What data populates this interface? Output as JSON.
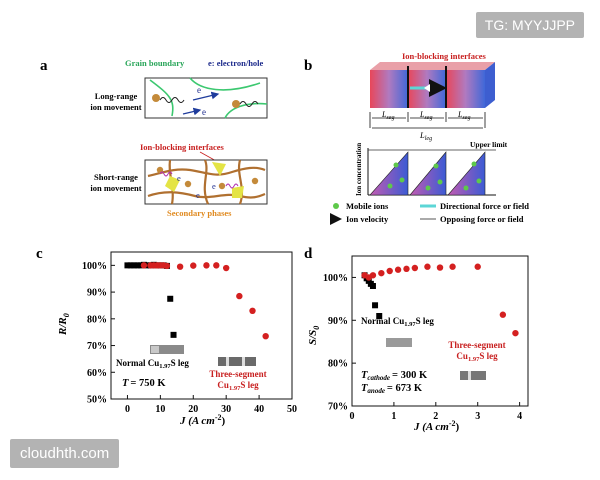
{
  "watermark_top": "TG: MYYJJPP",
  "watermark_bottom": "cloudhth.com",
  "panel_a": {
    "label": "a",
    "grain_boundary": "Grain boundary",
    "carrier": "e: electron/hole",
    "long_range_1": "Long-range",
    "long_range_2": "ion movement",
    "short_range_1": "Short-range",
    "short_range_2": "ion movement",
    "ion_blocking": "Ion-blocking interfaces",
    "secondary": "Secondary phases",
    "e": "e"
  },
  "panel_b": {
    "label": "b",
    "ion_blocking": "Ion-blocking interfaces",
    "lseg": "L",
    "lseg_sub": "seg",
    "lleg": "L",
    "lleg_sub": "leg",
    "upper_limit": "Upper limit",
    "ylabel": "Ion concentration",
    "legend_mobile": "Mobile ions",
    "legend_velocity": "Ion velocity",
    "legend_directional": "Directional force or field",
    "legend_opposing": "Opposing force or field"
  },
  "chart_data": [
    {
      "panel": "c",
      "type": "scatter",
      "ylabel_main": "R/R",
      "ylabel_sub": "0",
      "xlabel": "J (A cm",
      "xlabel_sup": "-2",
      "xlabel_end": ")",
      "xlim": [
        -5,
        50
      ],
      "ylim": [
        50,
        105
      ],
      "xticks": [
        "0",
        "10",
        "20",
        "30",
        "40",
        "50"
      ],
      "yticks": [
        "50%",
        "60%",
        "70%",
        "80%",
        "90%",
        "100%"
      ],
      "series": [
        {
          "name": "Normal Cu1.97S leg",
          "color": "#000000",
          "marker": "square",
          "points": [
            [
              0,
              100
            ],
            [
              1,
              100
            ],
            [
              2,
              100
            ],
            [
              3,
              100
            ],
            [
              4,
              100
            ],
            [
              5,
              100.2
            ],
            [
              6,
              100
            ],
            [
              7,
              100
            ],
            [
              8,
              100.2
            ],
            [
              9,
              100
            ],
            [
              10,
              100
            ],
            [
              11,
              100
            ],
            [
              12,
              99.8
            ],
            [
              13,
              87.5
            ],
            [
              14,
              74
            ]
          ]
        },
        {
          "name": "Three-segment Cu1.97S leg",
          "color": "#d42020",
          "marker": "circle",
          "points": [
            [
              5,
              100
            ],
            [
              7,
              100
            ],
            [
              8,
              100
            ],
            [
              9,
              100
            ],
            [
              10,
              100
            ],
            [
              11,
              100
            ],
            [
              12,
              99.8
            ],
            [
              16,
              99.5
            ],
            [
              20,
              99.9
            ],
            [
              24,
              100
            ],
            [
              27,
              100
            ],
            [
              30,
              99
            ],
            [
              34,
              88.5
            ],
            [
              38,
              83
            ],
            [
              42,
              73.5
            ]
          ]
        }
      ],
      "annotations": {
        "normal_1": "Normal Cu",
        "normal_sub": "1.97",
        "normal_2": "S leg",
        "three_1": "Three-segment",
        "three_2": "Cu",
        "three_sub": "1.97",
        "three_3": "S leg",
        "temp_T": "T",
        "temp_val": "= 750 K"
      }
    },
    {
      "panel": "d",
      "type": "scatter",
      "ylabel_main": "S/S",
      "ylabel_sub": "0",
      "xlabel": "J (A cm",
      "xlabel_sup": "-2",
      "xlabel_end": ")",
      "xlim": [
        0,
        4.2
      ],
      "ylim": [
        70,
        105
      ],
      "xticks": [
        "0",
        "1",
        "2",
        "3",
        "4"
      ],
      "yticks": [
        "70%",
        "80%",
        "90%",
        "100%"
      ],
      "series": [
        {
          "name": "Normal Cu1.97S leg",
          "color": "#000000",
          "marker": "square",
          "points": [
            [
              0.3,
              100.5
            ],
            [
              0.35,
              99.8
            ],
            [
              0.4,
              99.2
            ],
            [
              0.45,
              98.5
            ],
            [
              0.5,
              98
            ],
            [
              0.55,
              93.5
            ],
            [
              0.65,
              91
            ]
          ]
        },
        {
          "name": "Three-segment Cu1.97S leg",
          "color": "#d42020",
          "marker": "circle",
          "points": [
            [
              0.3,
              100.5
            ],
            [
              0.4,
              100
            ],
            [
              0.5,
              100.5
            ],
            [
              0.7,
              101
            ],
            [
              0.9,
              101.5
            ],
            [
              1.1,
              101.8
            ],
            [
              1.3,
              102
            ],
            [
              1.5,
              102.2
            ],
            [
              1.8,
              102.5
            ],
            [
              2.1,
              102.3
            ],
            [
              2.4,
              102.5
            ],
            [
              3.0,
              102.5
            ],
            [
              3.6,
              91.3
            ],
            [
              3.9,
              87
            ]
          ]
        }
      ],
      "annotations": {
        "normal_1": "Normal Cu",
        "normal_sub": "1.97",
        "normal_2": "S leg",
        "three_1": "Three-segment",
        "three_2": "Cu",
        "three_sub": "1.97",
        "three_3": "S leg",
        "tc_T": "T",
        "tc_sub": "cathode",
        "tc_val": "= 300 K",
        "ta_T": "T",
        "ta_sub": "anode",
        "ta_val": "= 673 K"
      }
    }
  ]
}
